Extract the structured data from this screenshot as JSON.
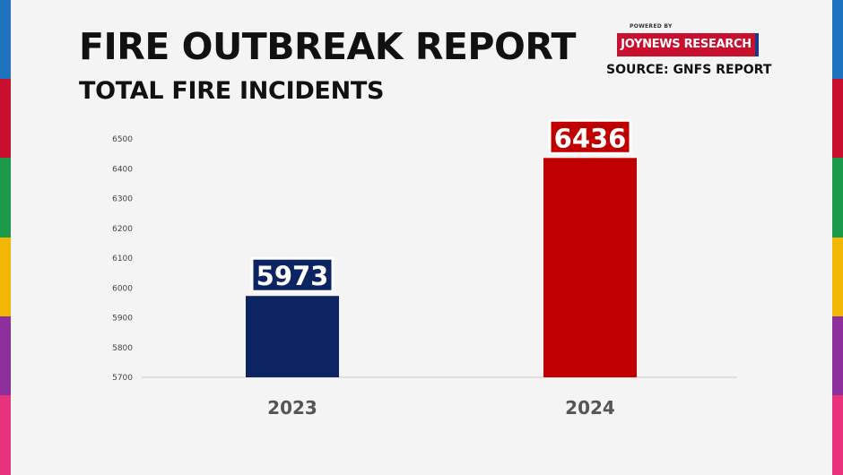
{
  "header": {
    "title": "FIRE OUTBREAK REPORT",
    "subtitle": "TOTAL FIRE INCIDENTS"
  },
  "brand": {
    "powered_by": "POWERED BY",
    "badge": "JOYNEWS RESEARCH",
    "source": "SOURCE: GNFS REPORT"
  },
  "colors": {
    "background": "#f4f4f4",
    "bar_2023": "#0c2461",
    "bar_2024": "#c00000",
    "edge_stripes": [
      "#1e73be",
      "#c8102e",
      "#1a9a4a",
      "#f2b705",
      "#8e2f9e",
      "#e8327c"
    ]
  },
  "chart_data": {
    "type": "bar",
    "title": "TOTAL FIRE INCIDENTS",
    "categories": [
      "2023",
      "2024"
    ],
    "values": [
      5973,
      6436
    ],
    "colors": [
      "#0c2461",
      "#c00000"
    ],
    "ylim": [
      5700,
      6500
    ],
    "yticks": [
      5700,
      5800,
      5900,
      6000,
      6100,
      6200,
      6300,
      6400,
      6500
    ],
    "grid": false,
    "xlabel": "",
    "ylabel": ""
  }
}
